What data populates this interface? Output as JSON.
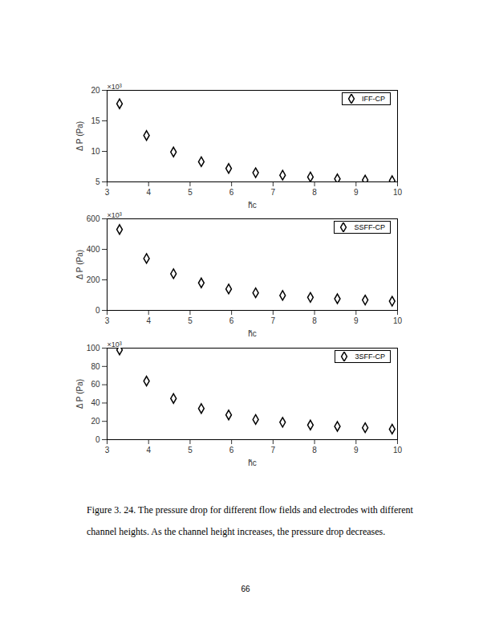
{
  "chart_data": [
    {
      "type": "scatter",
      "x_label": "h̃c",
      "y_label": "Δ P (Pa)",
      "annotations": [
        "×10³"
      ],
      "xlim": [
        3,
        10
      ],
      "xticks": [
        3,
        4,
        5,
        6,
        7,
        8,
        9,
        10
      ],
      "ylim": [
        5,
        20
      ],
      "yticks": [
        5,
        10,
        15,
        20
      ],
      "legend": "top-right",
      "series": [
        {
          "name": "IFF-CP",
          "color": "#000000",
          "marker": "diamond",
          "x": [
            3.3,
            3.95,
            4.6,
            5.27,
            5.93,
            6.58,
            7.23,
            7.9,
            8.55,
            9.22,
            9.87
          ],
          "values": [
            17.8,
            12.6,
            9.9,
            8.3,
            7.2,
            6.5,
            6.1,
            5.8,
            5.5,
            5.3,
            5.2
          ]
        }
      ]
    },
    {
      "type": "scatter",
      "x_label": "h̃c",
      "y_label": "Δ P (Pa)",
      "annotations": [
        "×10³"
      ],
      "xlim": [
        3,
        10
      ],
      "xticks": [
        3,
        4,
        5,
        6,
        7,
        8,
        9,
        10
      ],
      "ylim": [
        0,
        600
      ],
      "yticks": [
        0,
        200,
        400,
        600
      ],
      "legend": "top-right",
      "series": [
        {
          "name": "SSFF-CP",
          "color": "#000000",
          "marker": "diamond",
          "x": [
            3.3,
            3.95,
            4.6,
            5.27,
            5.93,
            6.58,
            7.23,
            7.9,
            8.55,
            9.22,
            9.87
          ],
          "values": [
            530,
            340,
            240,
            180,
            140,
            115,
            98,
            85,
            76,
            68,
            60
          ]
        }
      ]
    },
    {
      "type": "scatter",
      "x_label": "h̃c",
      "y_label": "Δ P (Pa)",
      "annotations": [
        "×10³"
      ],
      "xlim": [
        3,
        10
      ],
      "xticks": [
        3,
        4,
        5,
        6,
        7,
        8,
        9,
        10
      ],
      "ylim": [
        0,
        100
      ],
      "yticks": [
        0,
        20,
        40,
        60,
        80,
        100
      ],
      "legend": "top-right",
      "series": [
        {
          "name": "3SFF-CP",
          "color": "#000000",
          "marker": "diamond",
          "x": [
            3.3,
            3.95,
            4.6,
            5.27,
            5.93,
            6.58,
            7.23,
            7.9,
            8.55,
            9.22,
            9.87
          ],
          "values": [
            98,
            64,
            45,
            34,
            27,
            22,
            19,
            16,
            14.5,
            13,
            11.5
          ]
        }
      ]
    }
  ],
  "caption": "Figure 3. 24. The pressure drop for different flow fields and electrodes with different channel heights. As the channel height increases, the pressure drop decreases.",
  "page_number": "66"
}
